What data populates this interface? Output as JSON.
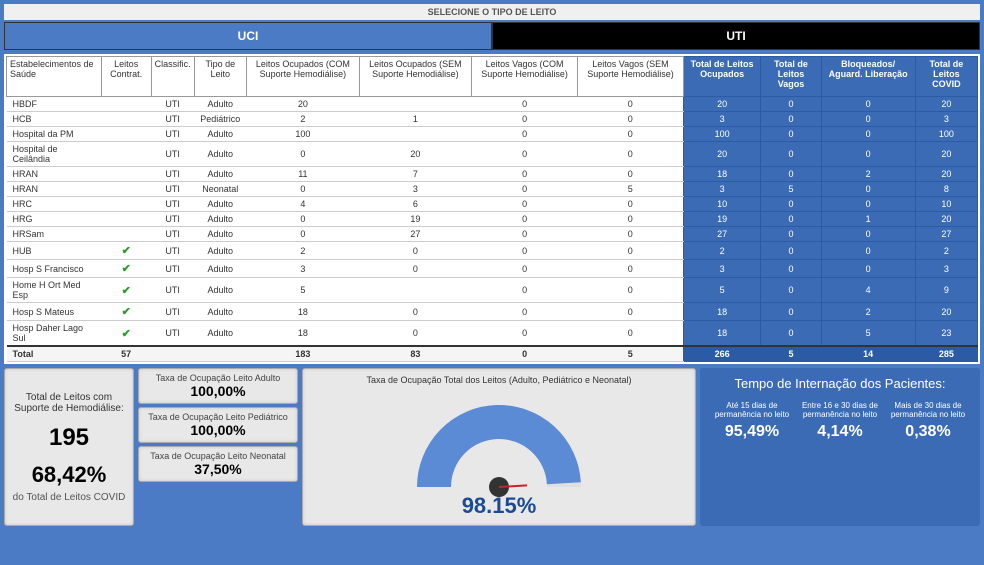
{
  "header": "SELECIONE O TIPO DE LEITO",
  "tabs": [
    "UCI",
    "UTI"
  ],
  "active_tab": 0,
  "columns_left": [
    "Estabelecimentos de Saúde",
    "Leitos Contrat.",
    "Classific.",
    "Tipo de Leito",
    "Leitos Ocupados (COM Suporte Hemodiálise)",
    "Leitos Ocupados (SEM Suporte Hemodiálise)",
    "Leitos Vagos (COM Suporte Hemodiálise)",
    "Leitos Vagos (SEM Suporte Hemodiálise)"
  ],
  "columns_right": [
    "Total de Leitos Ocupados",
    "Total de Leitos Vagos",
    "Bloqueados/ Aguard. Liberação",
    "Total de Leitos COVID"
  ],
  "rows": [
    {
      "n": "HBDF",
      "c": "",
      "cl": "UTI",
      "t": "Adulto",
      "oc": "20",
      "os": "",
      "vc": "0",
      "vs": "0",
      "to": "20",
      "tv": "0",
      "bl": "0",
      "tc": "20"
    },
    {
      "n": "HCB",
      "c": "",
      "cl": "UTI",
      "t": "Pediátrico",
      "oc": "2",
      "os": "1",
      "vc": "0",
      "vs": "0",
      "to": "3",
      "tv": "0",
      "bl": "0",
      "tc": "3"
    },
    {
      "n": "Hospital da PM",
      "c": "",
      "cl": "UTI",
      "t": "Adulto",
      "oc": "100",
      "os": "",
      "vc": "0",
      "vs": "0",
      "to": "100",
      "tv": "0",
      "bl": "0",
      "tc": "100"
    },
    {
      "n": "Hospital de Ceilândia",
      "c": "",
      "cl": "UTI",
      "t": "Adulto",
      "oc": "0",
      "os": "20",
      "vc": "0",
      "vs": "0",
      "to": "20",
      "tv": "0",
      "bl": "0",
      "tc": "20"
    },
    {
      "n": "HRAN",
      "c": "",
      "cl": "UTI",
      "t": "Adulto",
      "oc": "11",
      "os": "7",
      "vc": "0",
      "vs": "0",
      "to": "18",
      "tv": "0",
      "bl": "2",
      "tc": "20"
    },
    {
      "n": "HRAN",
      "c": "",
      "cl": "UTI",
      "t": "Neonatal",
      "oc": "0",
      "os": "3",
      "vc": "0",
      "vs": "5",
      "to": "3",
      "tv": "5",
      "bl": "0",
      "tc": "8"
    },
    {
      "n": "HRC",
      "c": "",
      "cl": "UTI",
      "t": "Adulto",
      "oc": "4",
      "os": "6",
      "vc": "0",
      "vs": "0",
      "to": "10",
      "tv": "0",
      "bl": "0",
      "tc": "10"
    },
    {
      "n": "HRG",
      "c": "",
      "cl": "UTI",
      "t": "Adulto",
      "oc": "0",
      "os": "19",
      "vc": "0",
      "vs": "0",
      "to": "19",
      "tv": "0",
      "bl": "1",
      "tc": "20"
    },
    {
      "n": "HRSam",
      "c": "",
      "cl": "UTI",
      "t": "Adulto",
      "oc": "0",
      "os": "27",
      "vc": "0",
      "vs": "0",
      "to": "27",
      "tv": "0",
      "bl": "0",
      "tc": "27"
    },
    {
      "n": "HUB",
      "c": "✓",
      "cl": "UTI",
      "t": "Adulto",
      "oc": "2",
      "os": "0",
      "vc": "0",
      "vs": "0",
      "to": "2",
      "tv": "0",
      "bl": "0",
      "tc": "2"
    },
    {
      "n": "Hosp S Francisco",
      "c": "✓",
      "cl": "UTI",
      "t": "Adulto",
      "oc": "3",
      "os": "0",
      "vc": "0",
      "vs": "0",
      "to": "3",
      "tv": "0",
      "bl": "0",
      "tc": "3"
    },
    {
      "n": "Home H Ort Med Esp",
      "c": "✓",
      "cl": "UTI",
      "t": "Adulto",
      "oc": "5",
      "os": "",
      "vc": "0",
      "vs": "0",
      "to": "5",
      "tv": "0",
      "bl": "4",
      "tc": "9"
    },
    {
      "n": "Hosp S Mateus",
      "c": "✓",
      "cl": "UTI",
      "t": "Adulto",
      "oc": "18",
      "os": "0",
      "vc": "0",
      "vs": "0",
      "to": "18",
      "tv": "0",
      "bl": "2",
      "tc": "20"
    },
    {
      "n": "Hosp Daher Lago Sul",
      "c": "✓",
      "cl": "UTI",
      "t": "Adulto",
      "oc": "18",
      "os": "0",
      "vc": "0",
      "vs": "0",
      "to": "18",
      "tv": "0",
      "bl": "5",
      "tc": "23"
    }
  ],
  "total": {
    "label": "Total",
    "c": "57",
    "cl": "",
    "t": "",
    "oc": "183",
    "os": "83",
    "vc": "0",
    "vs": "5",
    "to": "266",
    "tv": "5",
    "bl": "14",
    "tc": "285"
  },
  "stat": {
    "title": "Total de Leitos com Suporte de Hemodiálise:",
    "value": "195",
    "pct": "68,42%",
    "sub": "do Total de Leitos COVID"
  },
  "rates": [
    {
      "title": "Taxa de Ocupação Leito Adulto",
      "val": "100,00%"
    },
    {
      "title": "Taxa de Ocupação Leito Pediátrico",
      "val": "100,00%"
    },
    {
      "title": "Taxa de Ocupação Leito Neonatal",
      "val": "37,50%"
    }
  ],
  "gauge": {
    "title": "Taxa de Ocupação Total dos Leitos (Adulto, Pediátrico e Neonatal)",
    "value": "98.15%",
    "percent": 98.15,
    "ring_color": "#5a8bd4",
    "bg_color": "#e0e0e0",
    "needle_color": "#cc2222"
  },
  "intern": {
    "title": "Tempo de Internação dos Pacientes:",
    "cells": [
      {
        "label": "Até 15 dias de permanência no leito",
        "val": "95,49%"
      },
      {
        "label": "Entre 16 e 30 dias de permanência no leito",
        "val": "4,14%"
      },
      {
        "label": "Mais de 30 dias de permanência no leito",
        "val": "0,38%"
      }
    ]
  },
  "colors": {
    "page_bg": "#4a7bc4",
    "summary_bg": "#3a6bb4",
    "check": "#2a9d2a"
  }
}
